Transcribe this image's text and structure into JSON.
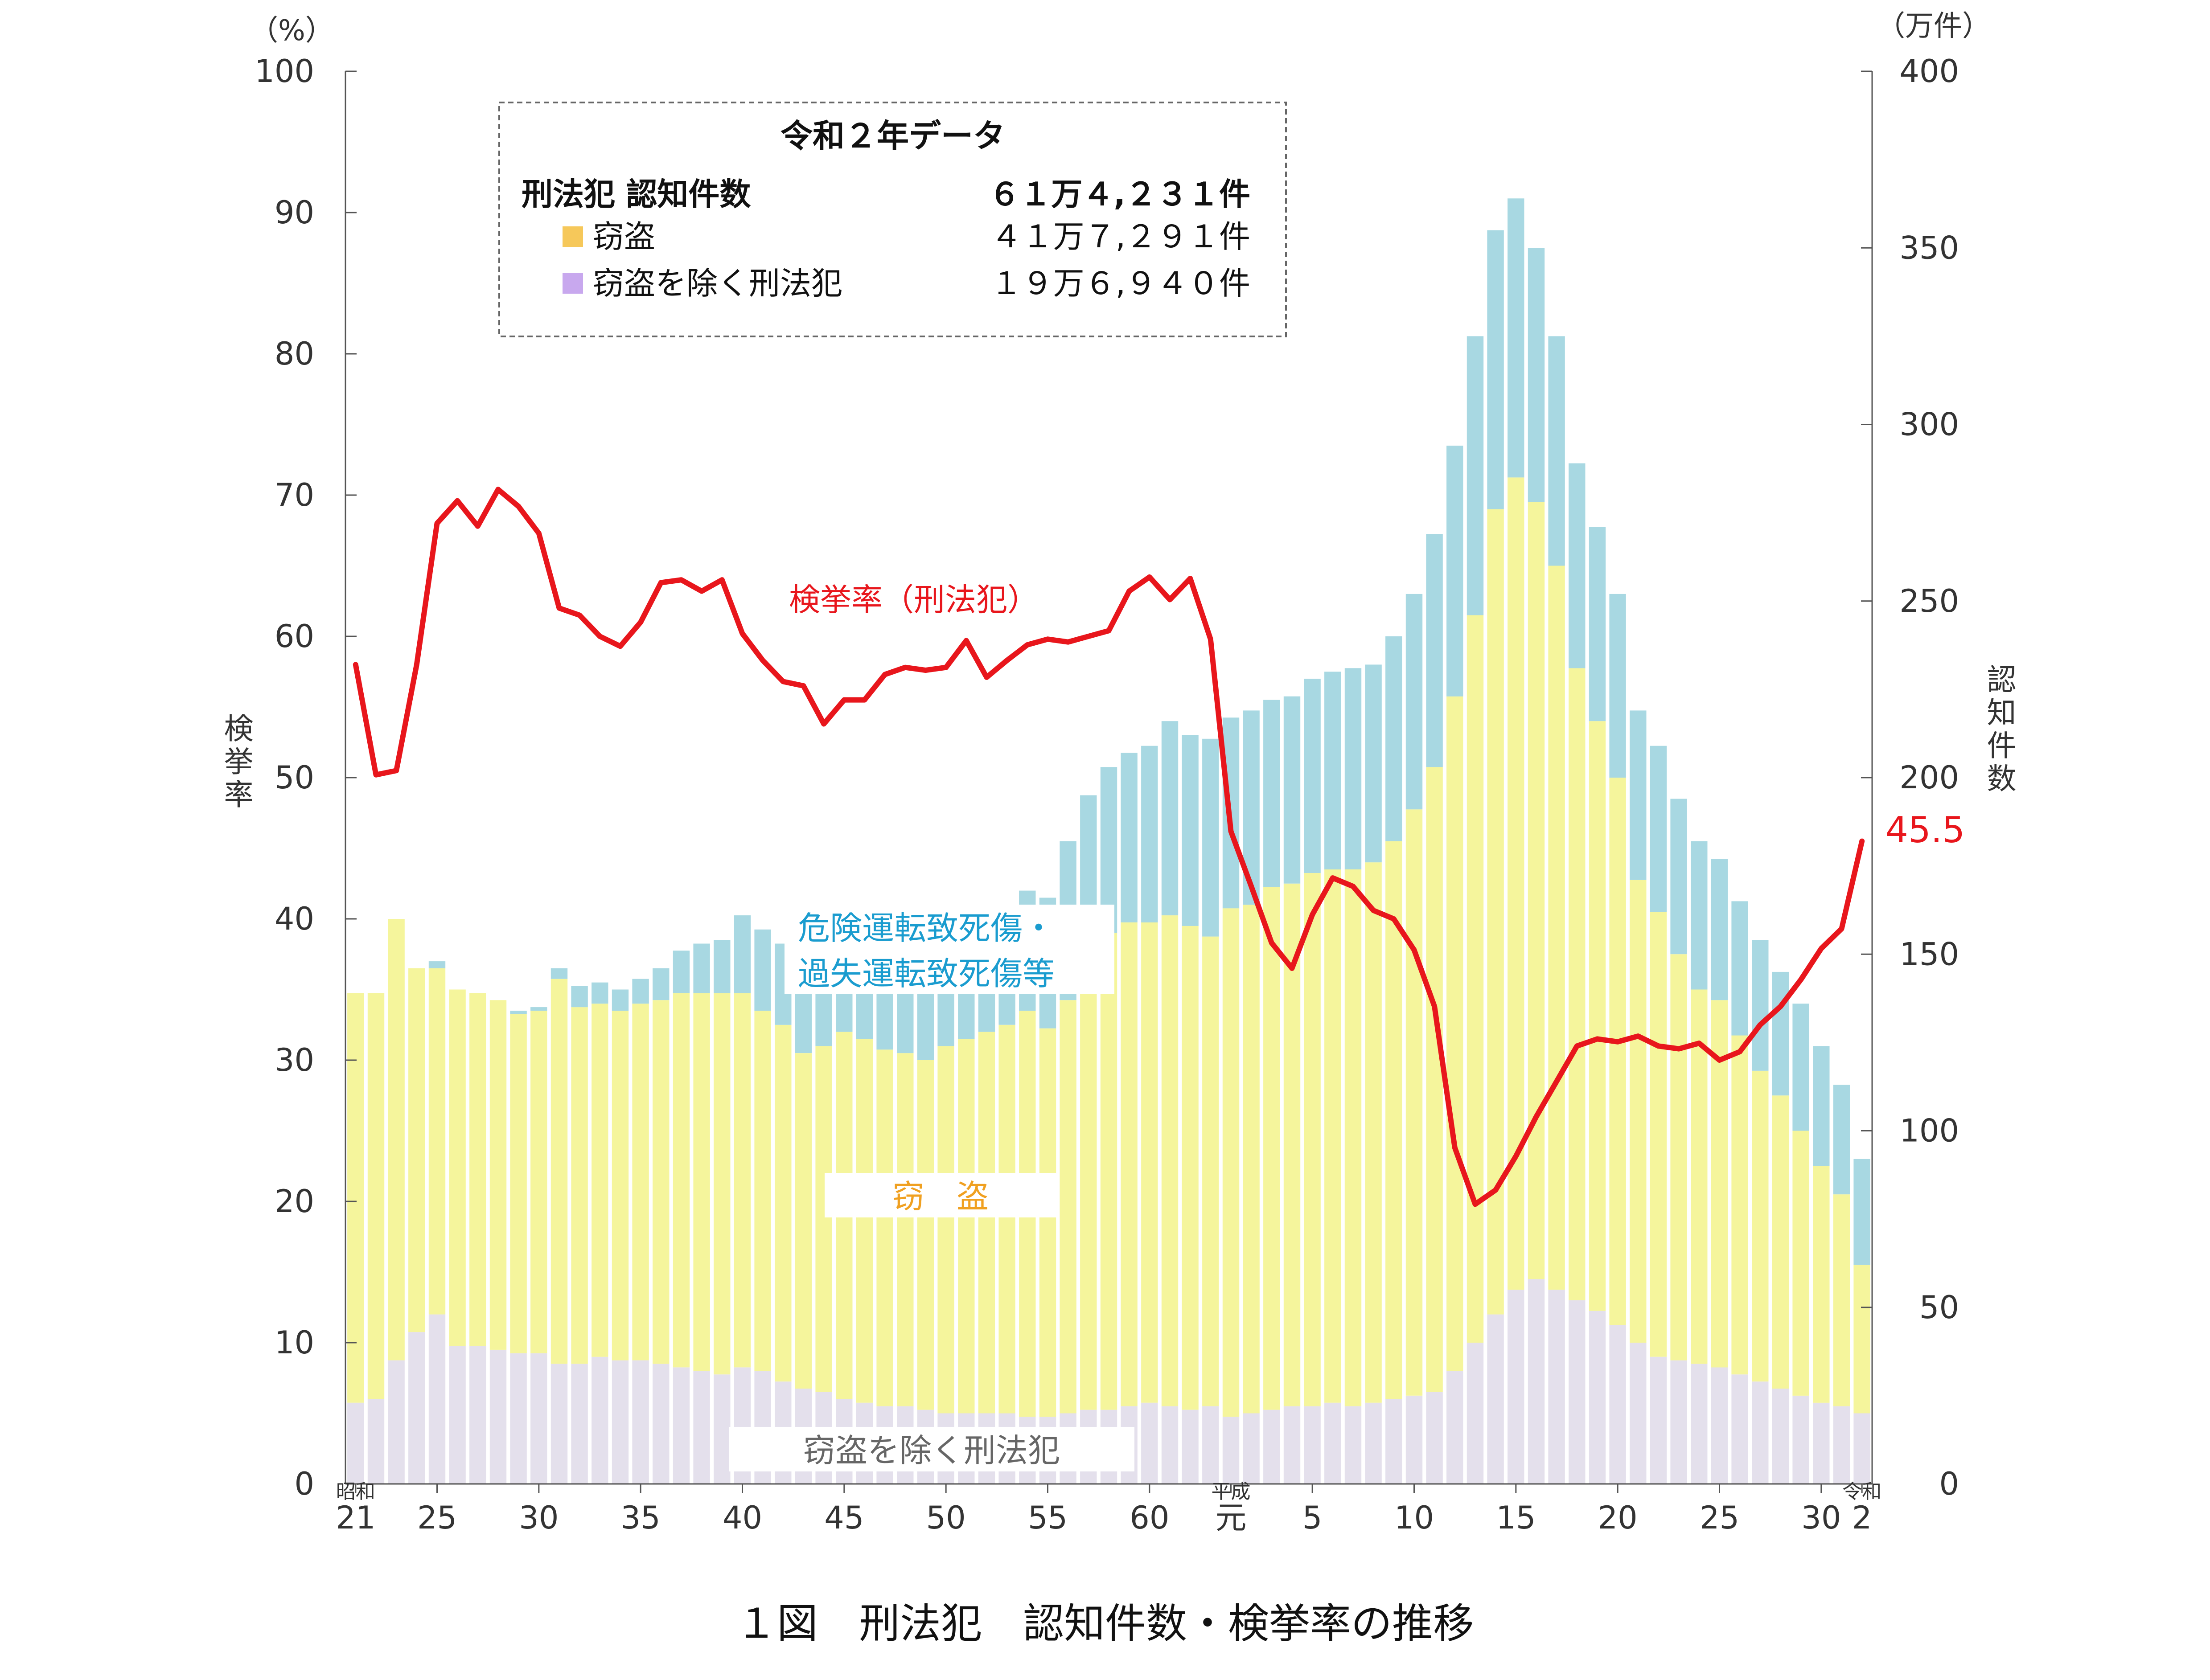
{
  "figure": {
    "caption": "１図　刑法犯　認知件数・検挙率の推移"
  },
  "colors": {
    "theft": "#f5f59c",
    "non_theft": "#e4e0ec",
    "traffic": "#a8d8e2",
    "rate_line": "#e8161c",
    "axis": "#555555",
    "traffic_label": "#1a9ccf",
    "theft_label": "#f0a020",
    "nontheft_label": "#666666",
    "legend_theft_marker": "#f6c85a",
    "legend_nontheft_marker": "#c8a8ee"
  },
  "infobox": {
    "title": "令和２年データ",
    "rows": [
      {
        "label": "刑法犯 認知件数",
        "value": "６１万４,２３１件",
        "marker": ""
      },
      {
        "label": "窃盗",
        "value": "４１万７,２９１件",
        "marker": "theft"
      },
      {
        "label": "窃盗を除く刑法犯",
        "value": "１９万６,９４０件",
        "marker": "nontheft"
      }
    ]
  },
  "chart_data": {
    "type": "bar",
    "stacked": true,
    "secondary_type": "line",
    "title": "１図　刑法犯　認知件数・検挙率の推移",
    "left_axis": {
      "label": "検挙率",
      "unit": "（%）",
      "range": [
        0,
        100
      ],
      "ticks": [
        "0",
        "10",
        "20",
        "30",
        "40",
        "50",
        "60",
        "70",
        "80",
        "90",
        "100"
      ]
    },
    "right_axis": {
      "label": "認知件数",
      "unit": "（万件）",
      "range": [
        0,
        400
      ],
      "ticks": [
        "0",
        "50",
        "100",
        "150",
        "200",
        "250",
        "300",
        "350",
        "400"
      ]
    },
    "x_axis": {
      "ticks": [
        {
          "index": 0,
          "label": "21",
          "era": "昭和"
        },
        {
          "index": 4,
          "label": "25"
        },
        {
          "index": 9,
          "label": "30"
        },
        {
          "index": 14,
          "label": "35"
        },
        {
          "index": 19,
          "label": "40"
        },
        {
          "index": 24,
          "label": "45"
        },
        {
          "index": 29,
          "label": "50"
        },
        {
          "index": 34,
          "label": "55"
        },
        {
          "index": 39,
          "label": "60"
        },
        {
          "index": 43,
          "label": "元",
          "era": "平成"
        },
        {
          "index": 47,
          "label": "5"
        },
        {
          "index": 52,
          "label": "10"
        },
        {
          "index": 57,
          "label": "15"
        },
        {
          "index": 62,
          "label": "20"
        },
        {
          "index": 67,
          "label": "25"
        },
        {
          "index": 72,
          "label": "30"
        },
        {
          "index": 74,
          "label": "2",
          "era": "令和"
        }
      ]
    },
    "series": [
      {
        "name": "窃盗を除く刑法犯",
        "axis": "right",
        "values": [
          23,
          24,
          35,
          43,
          48,
          39,
          39,
          38,
          37,
          37,
          34,
          34,
          36,
          35,
          35,
          34,
          33,
          32,
          31,
          33,
          32,
          29,
          27,
          26,
          24,
          23,
          22,
          22,
          21,
          20,
          20,
          20,
          20,
          19,
          19,
          20,
          21,
          21,
          22,
          23,
          22,
          21,
          22,
          19,
          20,
          21,
          22,
          22,
          23,
          22,
          23,
          24,
          25,
          26,
          32,
          40,
          48,
          55,
          58,
          55,
          52,
          49,
          45,
          40,
          36,
          35,
          34,
          33,
          31,
          29,
          27,
          25,
          23,
          22,
          20
        ]
      },
      {
        "name": "窃盗",
        "axis": "right",
        "values": [
          116,
          115,
          125,
          103,
          98,
          101,
          100,
          99,
          96,
          97,
          109,
          101,
          100,
          99,
          101,
          103,
          106,
          107,
          108,
          106,
          102,
          101,
          95,
          98,
          104,
          103,
          101,
          100,
          99,
          104,
          106,
          108,
          110,
          115,
          110,
          117,
          129,
          135,
          137,
          136,
          139,
          137,
          133,
          144,
          144,
          148,
          148,
          151,
          151,
          152,
          153,
          158,
          166,
          177,
          191,
          206,
          228,
          230,
          220,
          205,
          179,
          167,
          155,
          131,
          126,
          115,
          106,
          104,
          96,
          88,
          83,
          75,
          67,
          60,
          42
        ]
      },
      {
        "name": "危険運転致死傷・過失運転致死傷等",
        "axis": "right",
        "values": [
          0,
          0,
          0,
          0,
          2,
          0,
          0,
          0,
          1,
          1,
          3,
          6,
          6,
          6,
          7,
          9,
          12,
          14,
          15,
          22,
          23,
          23,
          22,
          29,
          35,
          37,
          31,
          31,
          27,
          26,
          26,
          27,
          32,
          34,
          37,
          45,
          45,
          47,
          48,
          50,
          55,
          54,
          56,
          54,
          55,
          53,
          53,
          55,
          56,
          57,
          56,
          58,
          61,
          66,
          71,
          79,
          79,
          79,
          72,
          65,
          58,
          55,
          52,
          48,
          47,
          44,
          42,
          40,
          38,
          37,
          35,
          36,
          34,
          31,
          30
        ]
      },
      {
        "name": "検挙率（刑法犯）",
        "axis": "left",
        "type": "line",
        "values": [
          58.0,
          50.2,
          50.5,
          58.0,
          68.0,
          69.6,
          67.8,
          70.4,
          69.2,
          67.3,
          62.0,
          61.5,
          60.0,
          59.3,
          61.0,
          63.8,
          64.0,
          63.2,
          64.0,
          60.2,
          58.3,
          56.8,
          56.5,
          53.8,
          55.5,
          55.5,
          57.3,
          57.8,
          57.6,
          57.8,
          59.7,
          57.1,
          58.3,
          59.4,
          59.8,
          59.6,
          60.0,
          60.4,
          63.2,
          64.2,
          62.6,
          64.1,
          59.8,
          46.2,
          42.3,
          38.3,
          36.5,
          40.3,
          42.9,
          42.3,
          40.6,
          40.0,
          37.8,
          33.8,
          23.8,
          19.8,
          20.8,
          23.2,
          26.0,
          28.5,
          31.0,
          31.5,
          31.3,
          31.7,
          31.0,
          30.8,
          31.2,
          30.0,
          30.6,
          32.5,
          33.8,
          35.7,
          37.9,
          39.3,
          45.5
        ]
      }
    ],
    "annotations": {
      "rate_line_label": "検挙率（刑法犯）",
      "final_rate_label": "45.5",
      "traffic_label_line1": "危険運転致死傷・",
      "traffic_label_line2": "過失運転致死傷等",
      "theft_label": "窃　盗",
      "nontheft_label": "窃盗を除く刑法犯"
    },
    "grid": false
  }
}
